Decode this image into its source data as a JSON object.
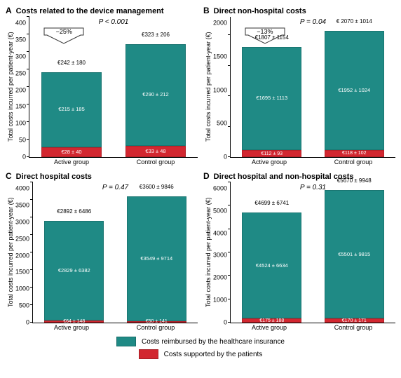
{
  "ylabel": "Total costs incurred per patient-year (€)",
  "xlabels": [
    "Active group",
    "Control group"
  ],
  "colors": {
    "insurance": "#1f8a85",
    "patient": "#d22730",
    "text_on_bar": "#ffffff",
    "axis": "#000000",
    "background": "#ffffff"
  },
  "legend": {
    "insurance": "Costs reimbursed by the healthcare insurance",
    "patient": "Costs supported by the patients"
  },
  "panels": [
    {
      "letter": "A",
      "title": "Costs related to the device management",
      "ylim": [
        0,
        400
      ],
      "ytick_step": 50,
      "pvalue": "P < 0.001",
      "reduction_pct": "−25%",
      "bars": [
        {
          "total": 242,
          "total_label": "€242 ± 180",
          "segments": [
            {
              "key": "insurance",
              "value": 215,
              "label": "€215 ± 185"
            },
            {
              "key": "patient",
              "value": 28,
              "label": "€28 ± 40"
            }
          ]
        },
        {
          "total": 323,
          "total_label": "€323 ± 206",
          "segments": [
            {
              "key": "insurance",
              "value": 290,
              "label": "€290 ± 212"
            },
            {
              "key": "patient",
              "value": 33,
              "label": "€33 ± 48"
            }
          ]
        }
      ]
    },
    {
      "letter": "B",
      "title": "Direct non-hospital costs",
      "ylim": [
        0,
        2300
      ],
      "ytick_step": 500,
      "pvalue": "P = 0.04",
      "reduction_pct": "−13%",
      "bars": [
        {
          "total": 1807,
          "total_label": "€1807 ± 1154",
          "segments": [
            {
              "key": "insurance",
              "value": 1695,
              "label": "€1695 ± 1113"
            },
            {
              "key": "patient",
              "value": 112,
              "label": "€112 ± 93"
            }
          ]
        },
        {
          "total": 2070,
          "total_label": "€ 2070 ± 1014",
          "segments": [
            {
              "key": "insurance",
              "value": 1952,
              "label": "€1952 ± 1024"
            },
            {
              "key": "patient",
              "value": 118,
              "label": "€118 ± 102"
            }
          ]
        }
      ]
    },
    {
      "letter": "C",
      "title": "Direct hospital costs",
      "ylim": [
        0,
        4000
      ],
      "ytick_step": 500,
      "pvalue": "P = 0.47",
      "bars": [
        {
          "total": 2892,
          "total_label": "€2892 ± 6486",
          "segments": [
            {
              "key": "insurance",
              "value": 2829,
              "label": "€2829 ± 6382"
            },
            {
              "key": "patient",
              "value": 64,
              "label": "€64 ± 148"
            }
          ]
        },
        {
          "total": 3600,
          "total_label": "€3600 ± 9846",
          "segments": [
            {
              "key": "insurance",
              "value": 3549,
              "label": "€3549 ± 9714"
            },
            {
              "key": "patient",
              "value": 50,
              "label": "€50 ± 141"
            }
          ]
        }
      ]
    },
    {
      "letter": "D",
      "title": "Direct hospital and non-hospital costs",
      "ylim": [
        0,
        6000
      ],
      "ytick_step": 1000,
      "pvalue": "P = 0.31",
      "bars": [
        {
          "total": 4699,
          "total_label": "€4699 ± 6741",
          "segments": [
            {
              "key": "insurance",
              "value": 4524,
              "label": "€4524 ± 6634"
            },
            {
              "key": "patient",
              "value": 175,
              "label": "€175 ± 188"
            }
          ]
        },
        {
          "total": 5670,
          "total_label": "€5670 ± 9948",
          "segments": [
            {
              "key": "insurance",
              "value": 5501,
              "label": "€5501 ± 9815"
            },
            {
              "key": "patient",
              "value": 170,
              "label": "€170 ± 171"
            }
          ]
        }
      ]
    }
  ]
}
